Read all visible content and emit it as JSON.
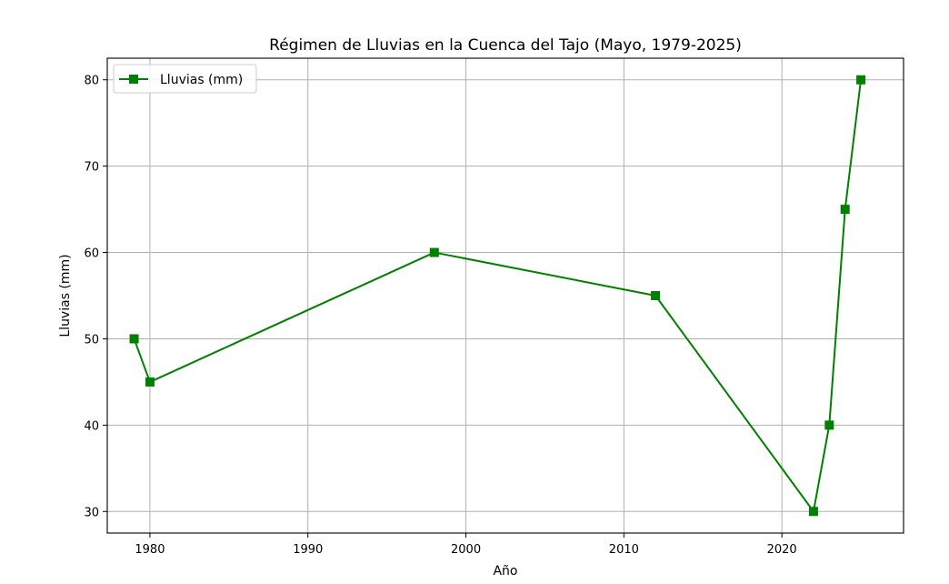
{
  "chart_data": {
    "type": "line",
    "title": "Régimen de Lluvias en la Cuenca del Tajo (Mayo, 1979-2025)",
    "xlabel": "Año",
    "ylabel": "Lluvias (mm)",
    "xlim": [
      1977.3,
      2027.7
    ],
    "ylim": [
      27.5,
      82.5
    ],
    "xticks": [
      1980,
      1990,
      2000,
      2010,
      2020
    ],
    "yticks": [
      30,
      40,
      50,
      60,
      70,
      80
    ],
    "grid": true,
    "legend_position": "top-left",
    "series": [
      {
        "name": "Lluvias (mm)",
        "color": "#008000",
        "marker": "square",
        "x": [
          1979,
          1980,
          1998,
          2012,
          2022,
          2023,
          2024,
          2025
        ],
        "y": [
          50,
          45,
          60,
          55,
          30,
          40,
          65,
          80
        ]
      }
    ]
  }
}
